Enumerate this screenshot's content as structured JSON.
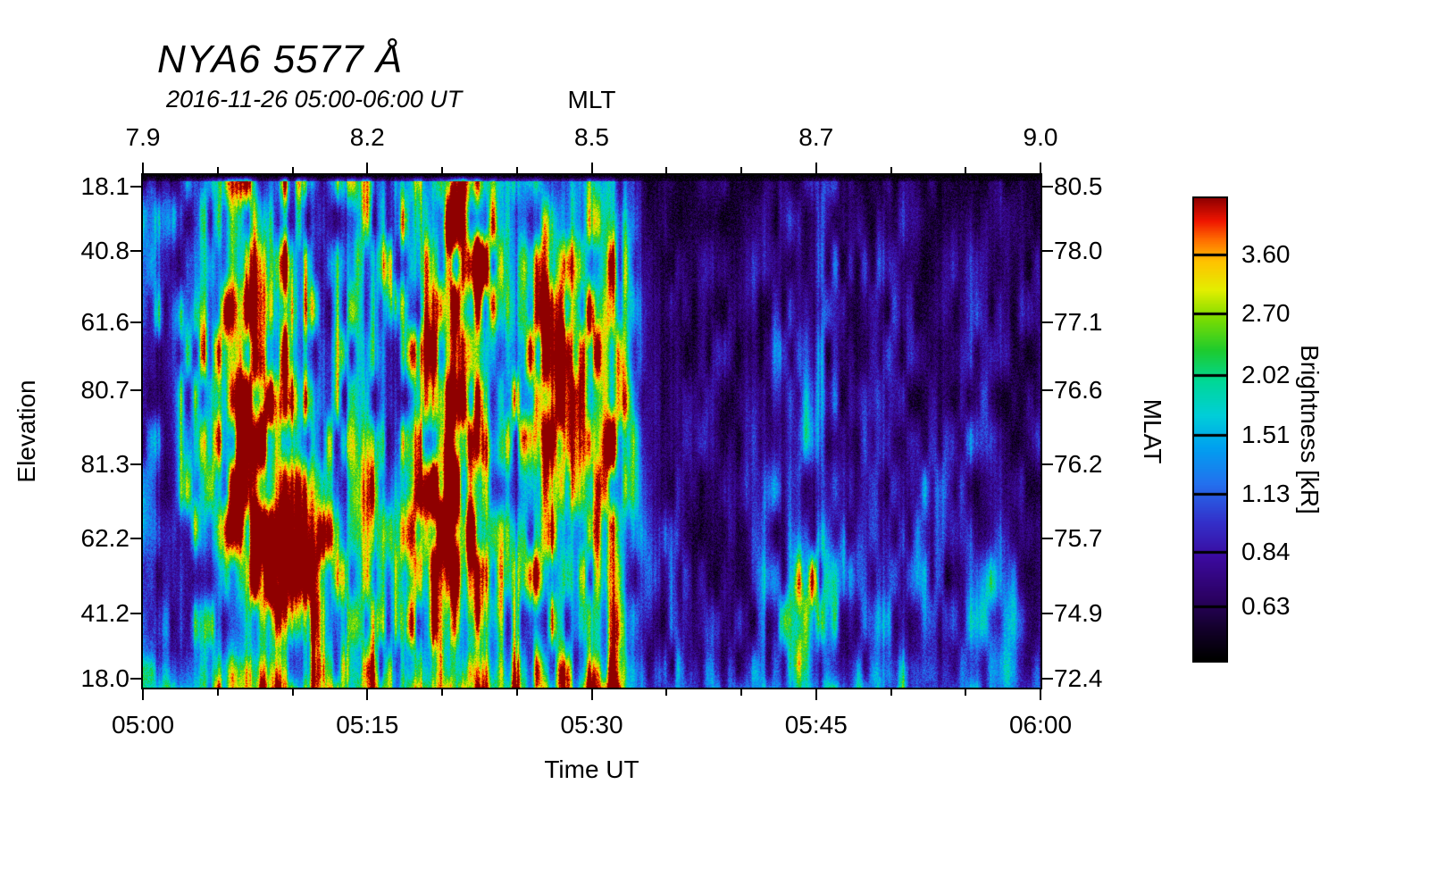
{
  "title": "NYA6 5577 Å",
  "subtitle": "2016-11-26 05:00-06:00 UT",
  "axes": {
    "top": {
      "label": "MLT",
      "ticks": [
        "7.9",
        "8.2",
        "8.5",
        "8.7",
        "9.0"
      ],
      "fracs": [
        0,
        0.25,
        0.5,
        0.75,
        1
      ]
    },
    "bottom": {
      "label": "Time UT",
      "ticks": [
        "05:00",
        "05:15",
        "05:30",
        "05:45",
        "06:00"
      ],
      "fracs": [
        0,
        0.25,
        0.5,
        0.75,
        1
      ]
    },
    "left": {
      "label": "Elevation",
      "ticks": [
        "18.1",
        "40.8",
        "61.6",
        "80.7",
        "81.3",
        "62.2",
        "41.2",
        "18.0"
      ],
      "fracs": [
        0.023,
        0.148,
        0.287,
        0.42,
        0.564,
        0.709,
        0.855,
        0.982
      ]
    },
    "right": {
      "label": "MLAT",
      "ticks": [
        "80.5",
        "78.0",
        "77.1",
        "76.6",
        "76.2",
        "75.7",
        "74.9",
        "72.4"
      ],
      "fracs": [
        0.023,
        0.148,
        0.287,
        0.42,
        0.564,
        0.709,
        0.855,
        0.982
      ]
    }
  },
  "colorbar": {
    "label": "Brightness [kR]",
    "ticks": [
      "3.60",
      "2.70",
      "2.02",
      "1.51",
      "1.13",
      "0.84",
      "0.63"
    ],
    "fracs": [
      0.122,
      0.249,
      0.382,
      0.512,
      0.639,
      0.765,
      0.882
    ]
  },
  "chart_data": {
    "type": "heatmap",
    "title": "NYA6 5577 Å",
    "subtitle": "2016-11-26 05:00-06:00 UT",
    "x_axis": {
      "label": "Time UT",
      "range": [
        "05:00",
        "06:00"
      ],
      "ticks": [
        "05:00",
        "05:15",
        "05:30",
        "05:45",
        "06:00"
      ]
    },
    "x_axis_top": {
      "label": "MLT",
      "ticks": [
        7.9,
        8.2,
        8.5,
        8.7,
        9.0
      ]
    },
    "y_axis": {
      "label": "Elevation",
      "ticks": [
        18.1,
        40.8,
        61.6,
        80.7,
        81.3,
        62.2,
        41.2,
        18.0
      ]
    },
    "y_axis_right": {
      "label": "MLAT",
      "ticks": [
        80.5,
        78.0,
        77.1,
        76.6,
        76.2,
        75.7,
        74.9,
        72.4
      ]
    },
    "colorbar": {
      "label": "Brightness [kR]",
      "tick_values_kR": [
        3.6,
        2.7,
        2.02,
        1.51,
        1.13,
        0.84,
        0.63
      ],
      "scale": "log"
    },
    "activity_profile_by_minute": [
      0.62,
      0.55,
      0.5,
      0.55,
      0.62,
      0.72,
      0.8,
      0.95,
      1.0,
      0.92,
      0.85,
      0.9,
      0.72,
      0.65,
      0.7,
      0.76,
      0.72,
      0.8,
      0.86,
      0.92,
      1.0,
      0.95,
      0.88,
      0.8,
      0.76,
      0.8,
      0.85,
      0.9,
      0.95,
      0.92,
      0.88,
      0.85,
      0.34,
      0.3,
      0.28,
      0.3,
      0.33,
      0.36,
      0.3,
      0.28,
      0.32,
      0.46,
      0.42,
      0.52,
      0.58,
      0.52,
      0.42,
      0.36,
      0.46,
      0.52,
      0.46,
      0.4,
      0.34,
      0.3,
      0.36,
      0.42,
      0.36,
      0.3,
      0.28,
      0.3
    ],
    "hotspots": [
      {
        "t": 0.135,
        "r": 0.62,
        "st": 0.045,
        "sr": 0.16,
        "a": 0.55
      },
      {
        "t": 0.175,
        "r": 0.74,
        "st": 0.03,
        "sr": 0.1,
        "a": 0.5
      },
      {
        "t": 0.1,
        "r": 0.3,
        "st": 0.03,
        "sr": 0.15,
        "a": 0.35
      },
      {
        "t": 0.3,
        "r": 0.72,
        "st": 0.028,
        "sr": 0.1,
        "a": 0.45
      },
      {
        "t": 0.345,
        "r": 0.66,
        "st": 0.032,
        "sr": 0.12,
        "a": 0.55
      },
      {
        "t": 0.36,
        "r": 0.22,
        "st": 0.028,
        "sr": 0.14,
        "a": 0.5
      },
      {
        "t": 0.465,
        "r": 0.4,
        "st": 0.028,
        "sr": 0.22,
        "a": 0.42
      },
      {
        "t": 0.525,
        "r": 0.52,
        "st": 0.022,
        "sr": 0.28,
        "a": 0.5
      },
      {
        "t": 0.735,
        "r": 0.86,
        "st": 0.018,
        "sr": 0.07,
        "a": 0.45
      },
      {
        "t": 0.95,
        "r": 0.88,
        "st": 0.025,
        "sr": 0.08,
        "a": 0.3
      }
    ],
    "colormap": [
      [
        0.0,
        "#000000"
      ],
      [
        0.07,
        "#15012e"
      ],
      [
        0.14,
        "#2d0268"
      ],
      [
        0.22,
        "#3b0a9e"
      ],
      [
        0.3,
        "#3333cc"
      ],
      [
        0.38,
        "#2470ee"
      ],
      [
        0.46,
        "#00a2f0"
      ],
      [
        0.53,
        "#00cfd8"
      ],
      [
        0.6,
        "#00d898"
      ],
      [
        0.67,
        "#1ecb2e"
      ],
      [
        0.74,
        "#7fdd00"
      ],
      [
        0.8,
        "#e3ef00"
      ],
      [
        0.86,
        "#ffc400"
      ],
      [
        0.91,
        "#ff6a00"
      ],
      [
        0.95,
        "#f01500"
      ],
      [
        1.0,
        "#8f0000"
      ]
    ],
    "noise": {
      "n1fx": 0.12,
      "n1fy": 0.02,
      "n2fx": 0.035,
      "n2fy": 0.012,
      "speckle": 0.14
    }
  }
}
